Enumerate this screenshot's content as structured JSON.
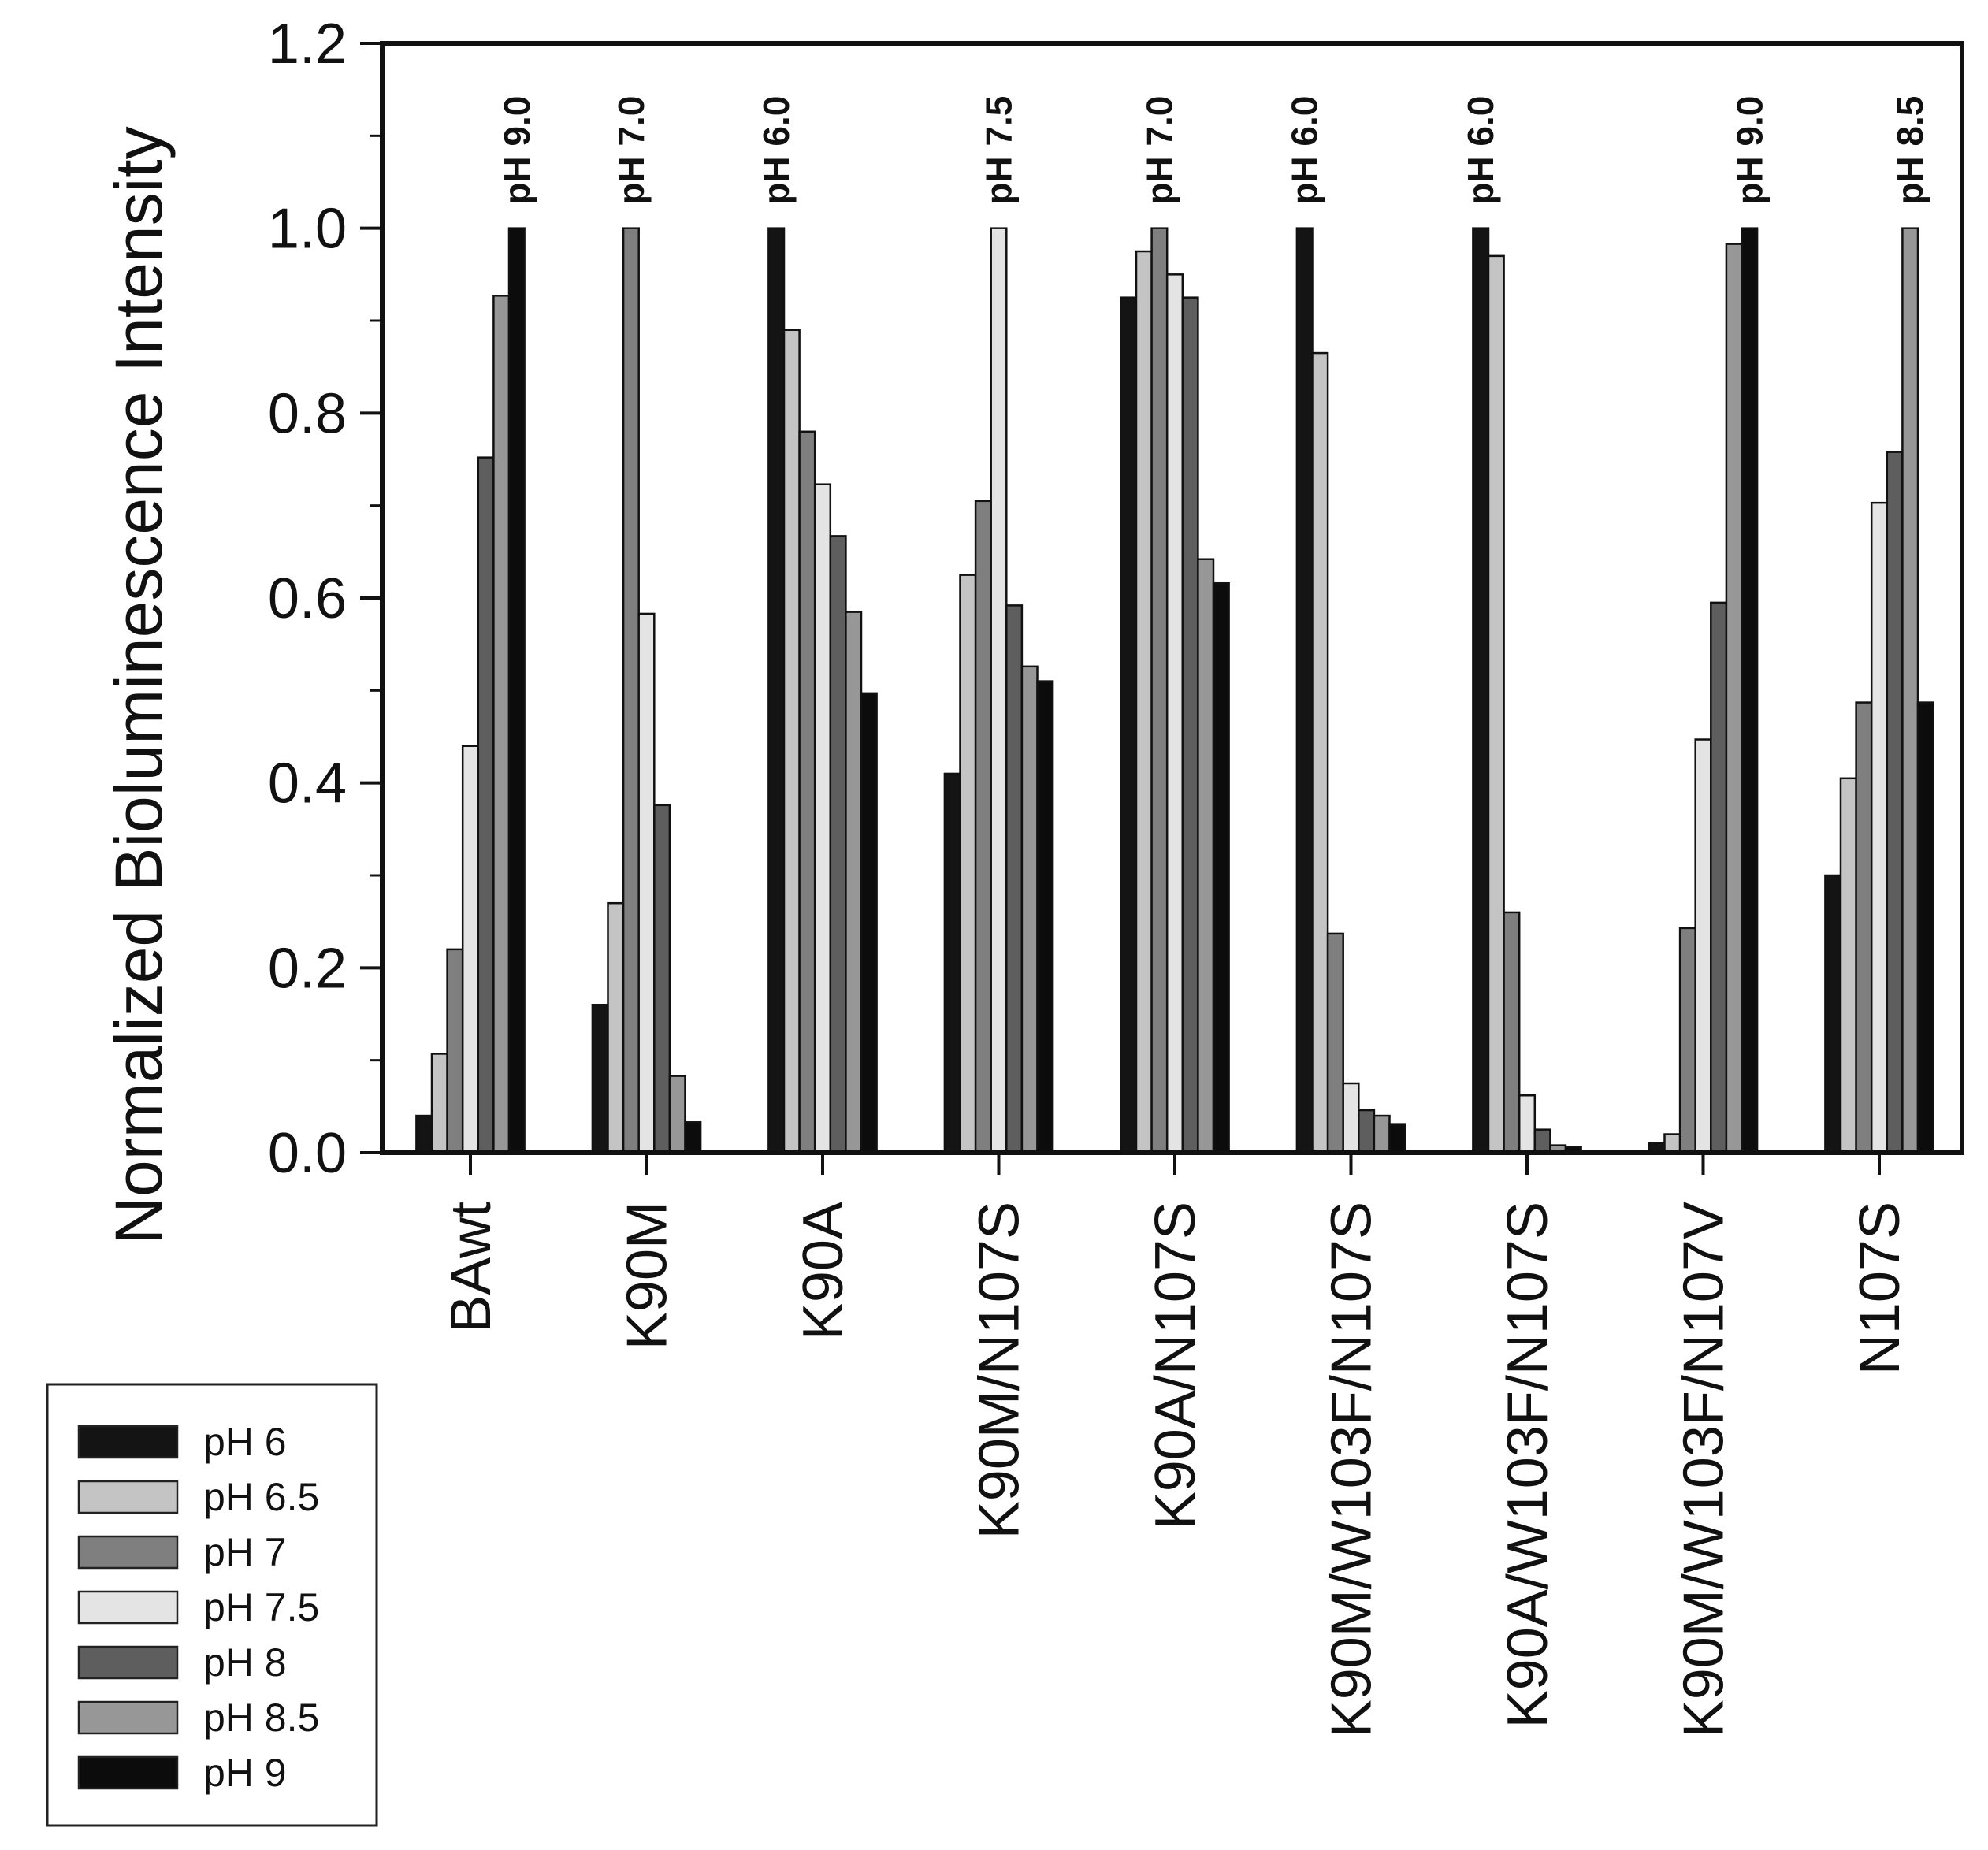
{
  "chart_data": {
    "type": "bar",
    "title": "",
    "xlabel": "",
    "ylabel": "Normalized Bioluminescence Intensity",
    "ylim": [
      0,
      1.2
    ],
    "yticks": [
      "0.0",
      "0.2",
      "0.4",
      "0.6",
      "0.8",
      "1.0",
      "1.2"
    ],
    "ytick_values": [
      0,
      0.2,
      0.4,
      0.6,
      0.8,
      1.0,
      1.2
    ],
    "categories": [
      "BAwt",
      "K90M",
      "K90A",
      "K90M/N107S",
      "K90A/N107S",
      "K90M/W103F/N107S",
      "K90A/W103F/N107S",
      "K90M/W103F/N107V",
      "N107S"
    ],
    "annotations": [
      "pH 9.0",
      "pH 7.0",
      "pH 6.0",
      "pH 7.5",
      "pH 7.0",
      "pH 6.0",
      "pH 6.0",
      "pH 9.0",
      "pH 8.5"
    ],
    "legend_position": "bottom-left",
    "series": [
      {
        "name": "pH 6",
        "color": "#141414",
        "values": [
          0.04,
          0.16,
          1.0,
          0.41,
          0.925,
          1.0,
          1.0,
          0.01,
          0.3
        ]
      },
      {
        "name": "pH 6.5",
        "color": "#c4c4c4",
        "values": [
          0.107,
          0.27,
          0.89,
          0.625,
          0.975,
          0.865,
          0.97,
          0.02,
          0.405
        ]
      },
      {
        "name": "pH 7",
        "color": "#7f7f7f",
        "values": [
          0.22,
          1.0,
          0.78,
          0.705,
          1.0,
          0.237,
          0.26,
          0.243,
          0.487
        ]
      },
      {
        "name": "pH 7.5",
        "color": "#e4e4e4",
        "values": [
          0.44,
          0.583,
          0.723,
          1.0,
          0.95,
          0.075,
          0.062,
          0.447,
          0.703
        ]
      },
      {
        "name": "pH 8",
        "color": "#5e5e5e",
        "values": [
          0.752,
          0.376,
          0.667,
          0.592,
          0.925,
          0.046,
          0.025,
          0.595,
          0.758
        ]
      },
      {
        "name": "pH 8.5",
        "color": "#979797",
        "values": [
          0.927,
          0.083,
          0.585,
          0.526,
          0.642,
          0.04,
          0.008,
          0.983,
          1.0
        ]
      },
      {
        "name": "pH 9",
        "color": "#0c0c0c",
        "values": [
          1.0,
          0.033,
          0.497,
          0.51,
          0.616,
          0.031,
          0.006,
          1.0,
          0.487
        ]
      }
    ]
  }
}
